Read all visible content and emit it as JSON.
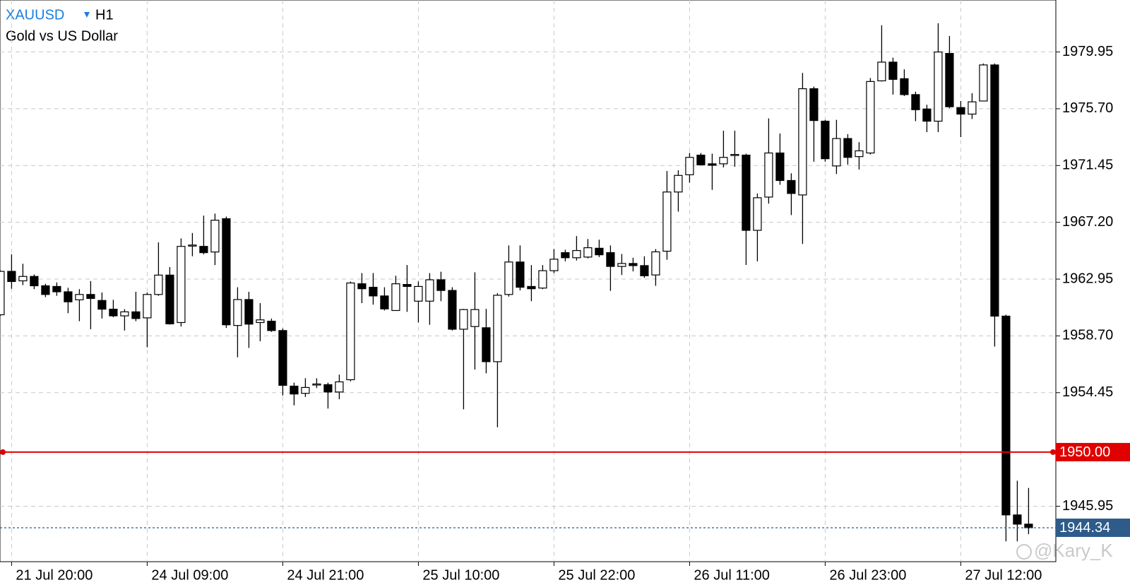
{
  "chart_data": {
    "type": "candlestick",
    "symbol": "XAUUSD",
    "timeframe": "H1",
    "title": "Gold vs US Dollar",
    "watermark": "@Kary_K",
    "categories": [
      null,
      "21 Jul 20:00",
      null,
      null,
      null,
      null,
      null,
      null,
      null,
      null,
      null,
      null,
      null,
      "24 Jul 09:00",
      null,
      null,
      null,
      null,
      null,
      null,
      null,
      null,
      null,
      null,
      null,
      "24 Jul 21:00",
      null,
      null,
      null,
      null,
      null,
      null,
      null,
      null,
      null,
      null,
      null,
      "25 Jul 10:00",
      null,
      null,
      null,
      null,
      null,
      null,
      null,
      null,
      null,
      null,
      null,
      "25 Jul 22:00",
      null,
      null,
      null,
      null,
      null,
      null,
      null,
      null,
      null,
      null,
      null,
      "26 Jul 11:00",
      null,
      null,
      null,
      null,
      null,
      null,
      null,
      null,
      null,
      null,
      null,
      "26 Jul 23:00",
      null,
      null,
      null,
      null,
      null,
      null,
      null,
      null,
      null,
      null,
      null,
      "27 Jul 12:00",
      null,
      null,
      null,
      null,
      null,
      null
    ],
    "open": [
      1960.28,
      1963.53,
      1962.82,
      1963.15,
      1962.45,
      1962.4,
      1962.0,
      1961.4,
      1961.8,
      1961.35,
      1960.7,
      1960.2,
      1960.5,
      1960.05,
      1961.8,
      1963.25,
      1959.7,
      1965.45,
      1965.4,
      1964.98,
      1967.47,
      1959.48,
      1961.42,
      1959.7,
      1959.8,
      1959.1,
      1954.94,
      1954.4,
      1955.05,
      1955.05,
      1954.5,
      1955.42,
      1962.6,
      1962.34,
      1961.69,
      1960.6,
      1962.55,
      1961.3,
      1961.3,
      1962.9,
      1962.1,
      1959.2,
      1959.4,
      1959.31,
      1956.77,
      1961.8,
      1964.23,
      1962.4,
      1962.28,
      1963.58,
      1964.93,
      1964.55,
      1964.6,
      1965.26,
      1964.93,
      1963.9,
      1964.12,
      1963.96,
      1963.26,
      1965.04,
      1969.47,
      1970.76,
      1972.23,
      1971.58,
      1971.58,
      1972.23,
      1972.23,
      1966.6,
      1969.09,
      1972.39,
      1970.33,
      1969.25,
      1977.2,
      1974.77,
      1971.42,
      1973.47,
      1972.12,
      1972.39,
      1977.79,
      1979.19,
      1977.95,
      1976.76,
      1975.68,
      1974.77,
      1979.84,
      1975.79,
      1975.3,
      1976.28,
      1978.98,
      1960.18,
      1945.3,
      1944.61
    ],
    "high": [
      1963.6,
      1964.8,
      1964.1,
      1963.3,
      1962.6,
      1962.7,
      1962.3,
      1962.2,
      1962.8,
      1961.95,
      1961.4,
      1960.7,
      1962.0,
      1961.95,
      1965.7,
      1963.85,
      1966.0,
      1966.4,
      1967.7,
      1967.85,
      1967.63,
      1962.34,
      1962.0,
      1961.15,
      1960.0,
      1959.25,
      1955.2,
      1955.53,
      1955.53,
      1955.2,
      1955.8,
      1962.77,
      1963.4,
      1963.4,
      1962.34,
      1963.2,
      1964.0,
      1962.77,
      1963.4,
      1963.5,
      1962.34,
      1960.72,
      1963.46,
      1960.72,
      1961.9,
      1965.47,
      1965.47,
      1964.0,
      1964.0,
      1965.2,
      1965.15,
      1966.17,
      1965.95,
      1965.9,
      1965.47,
      1964.83,
      1964.55,
      1964.66,
      1965.2,
      1971.04,
      1971.1,
      1972.39,
      1972.39,
      1972.34,
      1974.06,
      1974.06,
      1972.34,
      1969.36,
      1974.98,
      1973.85,
      1970.87,
      1978.38,
      1977.36,
      1974.87,
      1974.87,
      1973.8,
      1973.2,
      1978.0,
      1981.95,
      1979.52,
      1978.65,
      1976.98,
      1976.0,
      1982.1,
      1981.14,
      1976.28,
      1976.87,
      1979.09,
      1979.09,
      1960.29,
      1947.86,
      1947.32
    ],
    "low": [
      1960.2,
      1962.23,
      1962.5,
      1962.2,
      1961.6,
      1961.7,
      1960.4,
      1959.8,
      1959.2,
      1960.0,
      1960.1,
      1959.1,
      1959.8,
      1957.85,
      1961.7,
      1959.55,
      1959.4,
      1964.66,
      1964.8,
      1964.0,
      1959.3,
      1957.1,
      1957.8,
      1958.3,
      1959.0,
      1954.24,
      1953.5,
      1954.13,
      1954.8,
      1953.26,
      1953.96,
      1955.3,
      1961.15,
      1961.04,
      1960.6,
      1960.6,
      1960.5,
      1959.7,
      1959.53,
      1961.3,
      1959.1,
      1953.2,
      1956.18,
      1955.9,
      1951.86,
      1961.64,
      1962.1,
      1961.3,
      1962.2,
      1963.4,
      1964.28,
      1964.34,
      1964.5,
      1964.6,
      1962.07,
      1963.26,
      1963.53,
      1963.04,
      1962.45,
      1964.4,
      1968.0,
      1970.17,
      1971.47,
      1969.63,
      1971.31,
      1971.36,
      1964.01,
      1964.28,
      1968.6,
      1970.01,
      1967.74,
      1965.58,
      1971.74,
      1971.74,
      1970.82,
      1971.52,
      1971.15,
      1972.28,
      1977.74,
      1976.76,
      1976.65,
      1974.77,
      1973.95,
      1973.95,
      1975.74,
      1973.58,
      1974.93,
      1976.28,
      1957.9,
      1943.32,
      1943.32,
      1943.86
    ],
    "close": [
      1963.53,
      1962.77,
      1963.15,
      1962.45,
      1961.8,
      1962.0,
      1961.25,
      1961.8,
      1961.5,
      1960.7,
      1960.2,
      1960.5,
      1960.0,
      1961.8,
      1963.25,
      1959.6,
      1965.4,
      1965.5,
      1964.93,
      1967.36,
      1959.53,
      1961.42,
      1959.58,
      1959.9,
      1959.1,
      1955.0,
      1954.35,
      1954.84,
      1955.1,
      1954.5,
      1955.26,
      1962.66,
      1962.23,
      1961.69,
      1960.72,
      1962.6,
      1962.4,
      1962.4,
      1962.9,
      1962.1,
      1959.2,
      1960.67,
      1960.67,
      1956.77,
      1961.74,
      1964.23,
      1962.34,
      1962.23,
      1963.58,
      1964.44,
      1964.55,
      1965.09,
      1965.3,
      1964.77,
      1963.9,
      1964.12,
      1963.96,
      1963.2,
      1964.99,
      1969.47,
      1970.71,
      1972.06,
      1971.5,
      1971.47,
      1972.06,
      1972.28,
      1966.6,
      1969.04,
      1972.39,
      1970.33,
      1969.36,
      1977.2,
      1974.82,
      1971.96,
      1973.47,
      1972.06,
      1972.55,
      1977.74,
      1979.19,
      1977.9,
      1976.76,
      1975.63,
      1974.77,
      1979.95,
      1975.85,
      1975.3,
      1976.22,
      1978.98,
      1960.18,
      1945.3,
      1944.61,
      1944.34
    ],
    "up_color": "#ffffff",
    "down_color": "#000000",
    "ylim": [
      1941.8,
      1983.84
    ],
    "yticks": [
      1979.95,
      {
        "value": 1975.7,
        "label": "1975.70"
      },
      1971.45,
      {
        "value": 1967.2,
        "label": "1967.20"
      },
      1962.95,
      {
        "value": 1958.7,
        "label": "1958.70"
      },
      1954.45,
      1945.95
    ],
    "grid": true,
    "hlines": [
      {
        "value": 1950,
        "label": "1950.00",
        "color": "#e00000"
      },
      {
        "value": 1944.34,
        "label": "1944.34",
        "color": "#2e5b8a"
      }
    ]
  }
}
